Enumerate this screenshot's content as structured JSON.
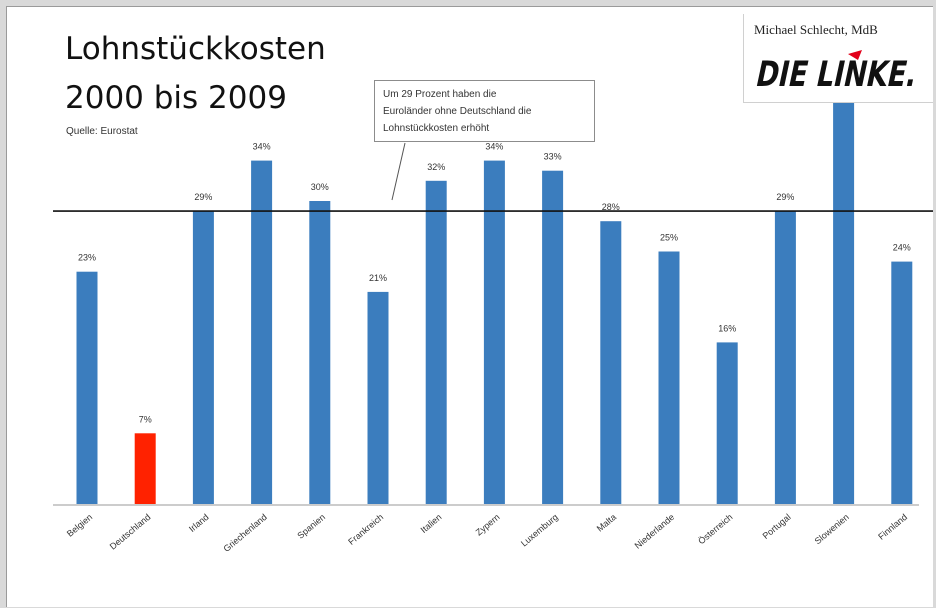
{
  "slide": {
    "title_line1": "Lohnstückkosten",
    "title_line2": "2000 bis 2009",
    "source": "Quelle: Eurostat",
    "callout_lines": [
      "Um 29 Prozent haben die",
      "Euroländer ohne Deutschland die",
      "Lohnstückkosten erhöht"
    ],
    "logo_author": "Michael Schlecht, MdB",
    "logo_text": "DIE LINKE."
  },
  "colors": {
    "bar": "#3b7dbe",
    "highlight": "#ff2200",
    "reference_line": "#111111",
    "logo_red": "#e2001a"
  },
  "chart_data": {
    "type": "bar",
    "title": "Lohnstückkosten 2000 bis 2009",
    "categories": [
      "Belgien",
      "Deutschland",
      "Irland",
      "Griechenland",
      "Spanien",
      "Frankreich",
      "Italien",
      "Zypern",
      "Luxemburg",
      "Malta",
      "Niederlande",
      "Österreich",
      "Portugal",
      "Slowenien",
      "Finnland"
    ],
    "values": [
      23,
      7,
      29,
      34,
      30,
      21,
      32,
      34,
      33,
      28,
      25,
      16,
      29,
      40,
      24
    ],
    "value_labels": [
      "23%",
      "7%",
      "29%",
      "34%",
      "30%",
      "21%",
      "32%",
      "34%",
      "33%",
      "28%",
      "25%",
      "16%",
      "29%",
      "",
      "24%"
    ],
    "highlight_category": "Deutschland",
    "reference_value": 29,
    "ylim": [
      0,
      40
    ],
    "grid": false,
    "xlabel": "",
    "ylabel": ""
  }
}
